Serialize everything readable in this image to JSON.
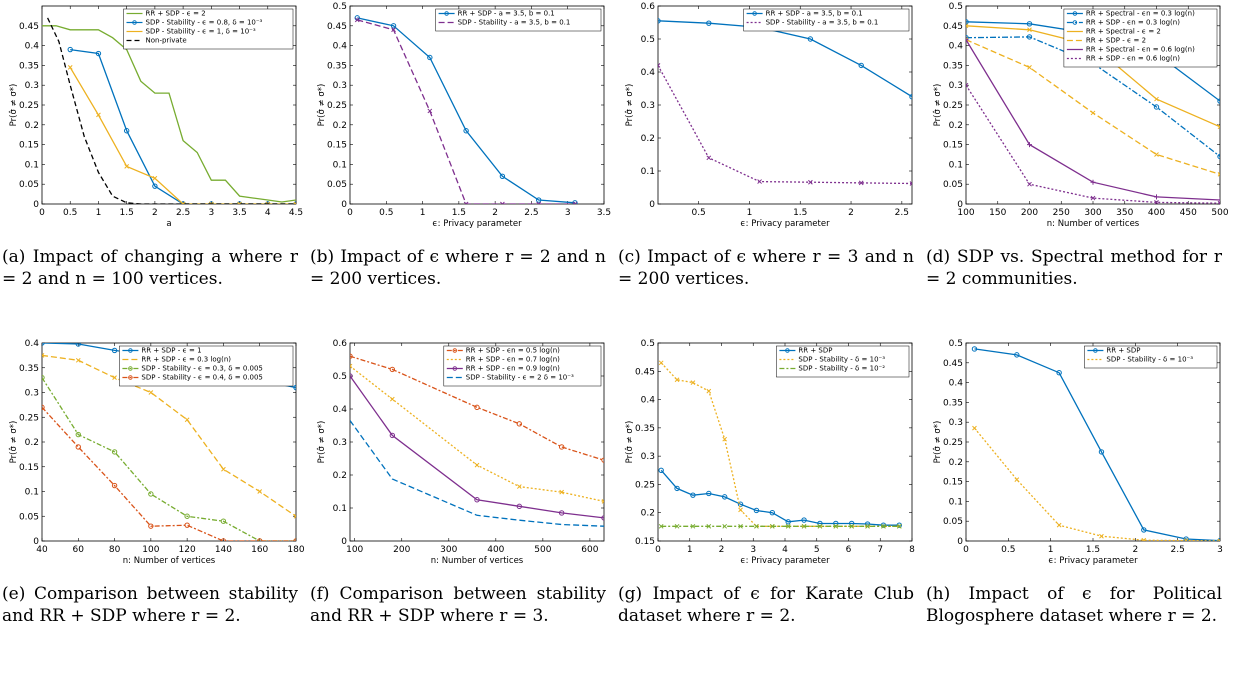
{
  "figure": {
    "captions": [
      "(a) Impact of changing a where r = 2 and n = 100 vertices.",
      "(b) Impact of ϵ where r = 2 and n = 200 vertices.",
      "(c) Impact of ϵ where r = 3 and n = 200 vertices.",
      "(d) SDP vs. Spectral method for r = 2 communities.",
      "(e) Comparison between stability and RR + SDP where r = 2.",
      "(f) Comparison between stability and RR + SDP where r = 3.",
      "(g) Impact of ϵ for Karate Club dataset where r = 2.",
      "(h) Impact of ϵ for Political Blogosphere dataset where r = 2."
    ]
  },
  "chart_data": [
    {
      "type": "line",
      "xlabel": "a",
      "ylabel": "Pr(σ̂ ≠ σ*)",
      "xlim": [
        0,
        4.5
      ],
      "ylim": [
        0,
        0.5
      ],
      "xticks": [
        0,
        0.5,
        1,
        1.5,
        2,
        2.5,
        3,
        3.5,
        4,
        4.5
      ],
      "yticks": [
        0,
        0.05,
        0.1,
        0.15,
        0.2,
        0.25,
        0.3,
        0.35,
        0.4,
        0.45
      ],
      "ytick_labels": [
        "0",
        "0.05",
        "0.1",
        "0.15",
        "0.2",
        "0.25",
        "0.3",
        "0.35",
        "0.4",
        "0.45"
      ],
      "legend": "top-right",
      "series": [
        {
          "name": "RR + SDP - ϵ = 2",
          "color": "#77ac30",
          "dash": "",
          "marker": "",
          "x": [
            0,
            0.25,
            0.5,
            0.75,
            1,
            1.25,
            1.5,
            1.75,
            2,
            2.25,
            2.5,
            2.75,
            3,
            3.25,
            3.5,
            3.75,
            4,
            4.25,
            4.5
          ],
          "y": [
            0.45,
            0.45,
            0.44,
            0.44,
            0.44,
            0.42,
            0.39,
            0.31,
            0.28,
            0.28,
            0.16,
            0.13,
            0.06,
            0.06,
            0.02,
            0.015,
            0.01,
            0.005,
            0.01
          ]
        },
        {
          "name": "SDP - Stability - ϵ = 0.8, δ = 10⁻³",
          "color": "#0072bd",
          "dash": "",
          "marker": "o",
          "x": [
            0.5,
            1,
            1.5,
            2,
            2.5,
            3,
            3.5,
            4,
            4.5
          ],
          "y": [
            0.39,
            0.38,
            0.185,
            0.045,
            0,
            0,
            0,
            0,
            0
          ]
        },
        {
          "name": "SDP - Stability - ϵ = 1, δ = 10⁻³",
          "color": "#edb120",
          "dash": "",
          "marker": "x",
          "x": [
            0.5,
            1,
            1.5,
            2,
            2.5,
            3,
            3.5,
            4,
            4.5
          ],
          "y": [
            0.345,
            0.225,
            0.095,
            0.065,
            0,
            0,
            0,
            0,
            0
          ]
        },
        {
          "name": "Non-private",
          "color": "#000000",
          "dash": "5,3",
          "marker": "",
          "x": [
            0.1,
            0.3,
            0.5,
            0.75,
            1,
            1.25,
            1.5,
            1.75,
            2,
            2.5,
            3,
            3.5,
            4,
            4.5
          ],
          "y": [
            0.47,
            0.41,
            0.3,
            0.17,
            0.08,
            0.02,
            0.003,
            0,
            0,
            0,
            0,
            0,
            0,
            0
          ]
        }
      ]
    },
    {
      "type": "line",
      "xlabel": "ϵ: Privacy parameter",
      "ylabel": "Pr(σ̂ ≠ σ*)",
      "xlim": [
        0,
        3.5
      ],
      "ylim": [
        0,
        0.5
      ],
      "xticks": [
        0,
        0.5,
        1,
        1.5,
        2,
        2.5,
        3,
        3.5
      ],
      "yticks": [
        0,
        0.05,
        0.1,
        0.15,
        0.2,
        0.25,
        0.3,
        0.35,
        0.4,
        0.45,
        0.5
      ],
      "ytick_labels": [
        "0",
        "0.05",
        "0.1",
        "0.15",
        "0.2",
        "0.25",
        "0.3",
        "0.35",
        "0.4",
        "0.45",
        "0.5"
      ],
      "legend": "top-right",
      "series": [
        {
          "name": "RR + SDP - a = 3.5, b = 0.1",
          "color": "#0072bd",
          "dash": "",
          "marker": "o",
          "x": [
            0.1,
            0.6,
            1.1,
            1.6,
            2.1,
            2.6,
            3.1
          ],
          "y": [
            0.47,
            0.45,
            0.37,
            0.185,
            0.07,
            0.01,
            0.003
          ]
        },
        {
          "name": "SDP - Stability - a = 3.5, b = 0.1",
          "color": "#7e2f8e",
          "dash": "6,3",
          "marker": "x",
          "x": [
            0.1,
            0.6,
            1.1,
            1.6,
            2.1,
            2.6,
            3.1
          ],
          "y": [
            0.465,
            0.44,
            0.235,
            0,
            0,
            0,
            0
          ]
        }
      ]
    },
    {
      "type": "line",
      "xlabel": "ϵ: Privacy parameter",
      "ylabel": "Pr(σ̂ ≠ σ*)",
      "xlim": [
        0.1,
        2.6
      ],
      "ylim": [
        0,
        0.6
      ],
      "xticks": [
        0.5,
        1,
        1.5,
        2,
        2.5
      ],
      "yticks": [
        0,
        0.1,
        0.2,
        0.3,
        0.4,
        0.5,
        0.6
      ],
      "ytick_labels": [
        "0",
        "0.1",
        "0.2",
        "0.3",
        "0.4",
        "0.5",
        "0.6"
      ],
      "legend": "top-right",
      "series": [
        {
          "name": "RR + SDP - a = 3.5, b = 0.1",
          "color": "#0072bd",
          "dash": "",
          "marker": "o",
          "x": [
            0.1,
            0.6,
            1.1,
            1.6,
            2.1,
            2.6
          ],
          "y": [
            0.555,
            0.548,
            0.535,
            0.5,
            0.42,
            0.325
          ]
        },
        {
          "name": "SDP - Stability - a = 3.5, b = 0.1",
          "color": "#7e2f8e",
          "dash": "2,2",
          "marker": "x",
          "x": [
            0.1,
            0.6,
            1.1,
            1.6,
            2.1,
            2.6
          ],
          "y": [
            0.42,
            0.14,
            0.068,
            0.066,
            0.064,
            0.062
          ]
        }
      ]
    },
    {
      "type": "line",
      "xlabel": "n: Number of vertices",
      "ylabel": "Pr(σ̂ ≠ σ*)",
      "xlim": [
        100,
        500
      ],
      "ylim": [
        0,
        0.5
      ],
      "xticks": [
        100,
        150,
        200,
        250,
        300,
        350,
        400,
        450,
        500
      ],
      "yticks": [
        0,
        0.05,
        0.1,
        0.15,
        0.2,
        0.25,
        0.3,
        0.35,
        0.4,
        0.45,
        0.5
      ],
      "ytick_labels": [
        "0",
        "0.05",
        "0.1",
        "0.15",
        "0.2",
        "0.25",
        "0.3",
        "0.35",
        "0.4",
        "0.45",
        "0.5"
      ],
      "legend": "top-right",
      "series": [
        {
          "name": "RR + Spectral - ϵn = 0.3 log(n)",
          "color": "#0072bd",
          "dash": "",
          "marker": "o",
          "x": [
            100,
            200,
            300,
            400,
            500
          ],
          "y": [
            0.46,
            0.455,
            0.43,
            0.38,
            0.26
          ]
        },
        {
          "name": "RR + SDP - ϵn = 0.3 log(n)",
          "color": "#0072bd",
          "dash": "6,2,2,2",
          "marker": "o",
          "x": [
            100,
            200,
            300,
            400,
            500
          ],
          "y": [
            0.42,
            0.422,
            0.355,
            0.245,
            0.12
          ]
        },
        {
          "name": "RR + Spectral - ϵ = 2",
          "color": "#edb120",
          "dash": "",
          "marker": "x",
          "x": [
            100,
            200,
            300,
            400,
            500
          ],
          "y": [
            0.45,
            0.44,
            0.4,
            0.265,
            0.195
          ]
        },
        {
          "name": "RR + SDP - ϵ = 2",
          "color": "#edb120",
          "dash": "6,3",
          "marker": "x",
          "x": [
            100,
            200,
            300,
            400,
            500
          ],
          "y": [
            0.415,
            0.345,
            0.23,
            0.125,
            0.075
          ]
        },
        {
          "name": "RR + Spectral - ϵn = 0.6 log(n)",
          "color": "#7e2f8e",
          "dash": "",
          "marker": "+",
          "x": [
            100,
            200,
            300,
            400,
            500
          ],
          "y": [
            0.415,
            0.15,
            0.055,
            0.018,
            0.01
          ]
        },
        {
          "name": "RR + SDP - ϵn = 0.6 log(n)",
          "color": "#7e2f8e",
          "dash": "2,2",
          "marker": "x",
          "x": [
            100,
            200,
            300,
            400,
            500
          ],
          "y": [
            0.3,
            0.05,
            0.015,
            0.004,
            0.002
          ]
        }
      ]
    },
    {
      "type": "line",
      "xlabel": "n: Number of vertices",
      "ylabel": "Pr(σ̂ ≠ σ*)",
      "xlim": [
        40,
        180
      ],
      "ylim": [
        0,
        0.4
      ],
      "xticks": [
        40,
        60,
        80,
        100,
        120,
        140,
        160,
        180
      ],
      "yticks": [
        0,
        0.05,
        0.1,
        0.15,
        0.2,
        0.25,
        0.3,
        0.35,
        0.4
      ],
      "ytick_labels": [
        "0",
        "0.05",
        "0.1",
        "0.15",
        "0.2",
        "0.25",
        "0.3",
        "0.35",
        "0.4"
      ],
      "legend": "top-right",
      "series": [
        {
          "name": "RR + SDP - ϵ = 1",
          "color": "#0072bd",
          "dash": "",
          "marker": "o",
          "x": [
            40,
            60,
            80,
            100,
            120,
            140,
            160,
            180
          ],
          "y": [
            0.4,
            0.398,
            0.385,
            0.375,
            0.36,
            0.34,
            0.325,
            0.31
          ]
        },
        {
          "name": "RR + SDP - ϵ = 0.3 log(n)",
          "color": "#edb120",
          "dash": "6,3",
          "marker": "x",
          "x": [
            40,
            60,
            80,
            100,
            120,
            140,
            160,
            180
          ],
          "y": [
            0.375,
            0.365,
            0.33,
            0.3,
            0.245,
            0.145,
            0.1,
            0.05
          ]
        },
        {
          "name": "SDP - Stability - ϵ = 0.3, δ = 0.005",
          "color": "#77ac30",
          "dash": "5,2,2,2",
          "marker": "o",
          "x": [
            40,
            60,
            80,
            100,
            120,
            140,
            160,
            180
          ],
          "y": [
            0.33,
            0.215,
            0.18,
            0.095,
            0.05,
            0.04,
            0,
            0
          ]
        },
        {
          "name": "SDP - Stability - ϵ = 0.4, δ = 0.005",
          "color": "#d95319",
          "dash": "5,2,2,2",
          "marker": "o",
          "x": [
            40,
            60,
            80,
            100,
            120,
            140,
            160,
            180
          ],
          "y": [
            0.27,
            0.19,
            0.112,
            0.03,
            0.032,
            0,
            0,
            0
          ]
        }
      ]
    },
    {
      "type": "line",
      "xlabel": "n: Number of vertices",
      "ylabel": "Pr(σ̂ ≠ σ*)",
      "xlim": [
        90,
        630
      ],
      "ylim": [
        0,
        0.6
      ],
      "xticks": [
        100,
        200,
        300,
        400,
        500,
        600
      ],
      "yticks": [
        0,
        0.1,
        0.2,
        0.3,
        0.4,
        0.5,
        0.6
      ],
      "ytick_labels": [
        "0",
        "0.1",
        "0.2",
        "0.3",
        "0.4",
        "0.5",
        "0.6"
      ],
      "legend": "top-right",
      "series": [
        {
          "name": "RR + SDP - ϵn = 0.5 log(n)",
          "color": "#d95319",
          "dash": "5,2,2,2",
          "marker": "o",
          "x": [
            90,
            180,
            360,
            450,
            540,
            630
          ],
          "y": [
            0.56,
            0.52,
            0.405,
            0.355,
            0.285,
            0.245
          ]
        },
        {
          "name": "RR + SDP - ϵn = 0.7 log(n)",
          "color": "#edb120",
          "dash": "2,2",
          "marker": "x",
          "x": [
            90,
            180,
            360,
            450,
            540,
            630
          ],
          "y": [
            0.53,
            0.43,
            0.23,
            0.165,
            0.148,
            0.12
          ]
        },
        {
          "name": "RR + SDP - ϵn = 0.9 log(n)",
          "color": "#7e2f8e",
          "dash": "",
          "marker": "o",
          "x": [
            90,
            180,
            360,
            450,
            540,
            630
          ],
          "y": [
            0.5,
            0.32,
            0.125,
            0.105,
            0.085,
            0.07
          ]
        },
        {
          "name": "SDP - Stability - ϵ = 2 δ = 10⁻³",
          "color": "#0072bd",
          "dash": "6,3",
          "marker": "",
          "x": [
            90,
            180,
            360,
            450,
            540,
            630
          ],
          "y": [
            0.365,
            0.188,
            0.078,
            0.063,
            0.05,
            0.045
          ]
        }
      ]
    },
    {
      "type": "line",
      "xlabel": "ϵ: Privacy parameter",
      "ylabel": "Pr(σ̂ ≠ σ*)",
      "xlim": [
        0,
        8
      ],
      "ylim": [
        0.15,
        0.5
      ],
      "xticks": [
        0,
        1,
        2,
        3,
        4,
        5,
        6,
        7,
        8
      ],
      "yticks": [
        0.15,
        0.2,
        0.25,
        0.3,
        0.35,
        0.4,
        0.45,
        0.5
      ],
      "ytick_labels": [
        "0.15",
        "0.2",
        "0.25",
        "0.3",
        "0.35",
        "0.4",
        "0.45",
        "0.5"
      ],
      "legend": "top-right",
      "series": [
        {
          "name": "RR + SDP",
          "color": "#0072bd",
          "dash": "",
          "marker": "o",
          "x": [
            0.1,
            0.6,
            1.1,
            1.6,
            2.1,
            2.6,
            3.1,
            3.6,
            4.1,
            4.6,
            5.1,
            5.6,
            6.1,
            6.6,
            7.1,
            7.6
          ],
          "y": [
            0.275,
            0.243,
            0.231,
            0.234,
            0.228,
            0.215,
            0.204,
            0.2,
            0.184,
            0.187,
            0.181,
            0.181,
            0.181,
            0.18,
            0.178,
            0.178
          ]
        },
        {
          "name": "SDP - Stability - δ = 10⁻³",
          "color": "#edb120",
          "dash": "2,2",
          "marker": "x",
          "x": [
            0.1,
            0.6,
            1.1,
            1.6,
            2.1,
            2.6,
            3.1,
            3.6,
            4.1,
            4.6,
            5.1,
            5.6,
            6.1,
            6.6,
            7.1,
            7.6
          ],
          "y": [
            0.465,
            0.435,
            0.43,
            0.415,
            0.33,
            0.205,
            0.176,
            0.176,
            0.176,
            0.176,
            0.176,
            0.176,
            0.176,
            0.176,
            0.176,
            0.176
          ]
        },
        {
          "name": "SDP - Stability - δ = 10⁻²",
          "color": "#77ac30",
          "dash": "5,2,2,2",
          "marker": "x",
          "x": [
            0.1,
            0.6,
            1.1,
            1.6,
            2.1,
            2.6,
            3.1,
            3.6,
            4.1,
            4.6,
            5.1,
            5.6,
            6.1,
            6.6,
            7.1,
            7.6
          ],
          "y": [
            0.176,
            0.176,
            0.176,
            0.176,
            0.176,
            0.176,
            0.176,
            0.176,
            0.176,
            0.176,
            0.176,
            0.176,
            0.176,
            0.176,
            0.176,
            0.176
          ]
        }
      ]
    },
    {
      "type": "line",
      "xlabel": "ϵ: Privacy parameter",
      "ylabel": "Pr(σ̂ ≠ σ*)",
      "xlim": [
        0,
        3
      ],
      "ylim": [
        0,
        0.5
      ],
      "xticks": [
        0,
        0.5,
        1,
        1.5,
        2,
        2.5,
        3
      ],
      "yticks": [
        0,
        0.05,
        0.1,
        0.15,
        0.2,
        0.25,
        0.3,
        0.35,
        0.4,
        0.45,
        0.5
      ],
      "ytick_labels": [
        "0",
        "0.05",
        "0.1",
        "0.15",
        "0.2",
        "0.25",
        "0.3",
        "0.35",
        "0.4",
        "0.45",
        "0.5"
      ],
      "legend": "top-right",
      "series": [
        {
          "name": "RR + SDP",
          "color": "#0072bd",
          "dash": "",
          "marker": "o",
          "x": [
            0.1,
            0.6,
            1.1,
            1.6,
            2.1,
            2.6,
            3.0
          ],
          "y": [
            0.485,
            0.47,
            0.425,
            0.225,
            0.028,
            0.005,
            0.001
          ]
        },
        {
          "name": "SDP - Stability - δ = 10⁻³",
          "color": "#edb120",
          "dash": "2,2",
          "marker": "x",
          "x": [
            0.1,
            0.6,
            1.1,
            1.6,
            2.1,
            2.6,
            3.0
          ],
          "y": [
            0.285,
            0.155,
            0.04,
            0.012,
            0.002,
            0.001,
            0
          ]
        }
      ]
    }
  ]
}
